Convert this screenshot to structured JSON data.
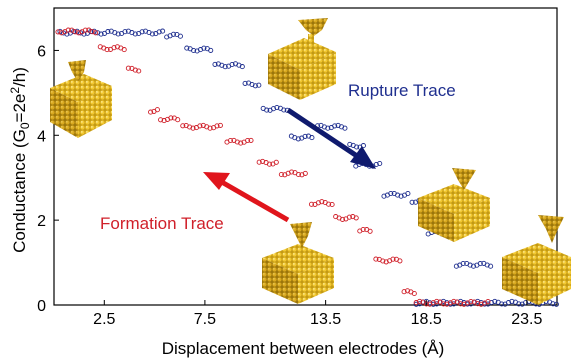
{
  "chart_data": {
    "type": "scatter",
    "xlabel": "Displacement between electrodes (Å)",
    "ylabel_parts": {
      "main": "Conductance (G",
      "sub0": "0",
      "mid": "=2e",
      "sup2": "2",
      "end": "/h)"
    },
    "xlim": [
      0,
      25
    ],
    "ylim": [
      0,
      7
    ],
    "xticks": [
      2.5,
      7.5,
      13.5,
      18.5,
      23.5
    ],
    "xtick_labels": [
      "2.5",
      "7.5",
      "13.5",
      "18.5",
      "23.5"
    ],
    "yticks": [
      0,
      2,
      4,
      6
    ],
    "ytick_labels": [
      "0",
      "2",
      "4",
      "6"
    ],
    "grid": false,
    "series": [
      {
        "name": "Rupture Trace",
        "color": "#1f2f8f",
        "segments": [
          {
            "x": [
              0.3,
              5.4
            ],
            "y": 6.42
          },
          {
            "x": [
              5.6,
              6.3
            ],
            "y": 6.35
          },
          {
            "x": [
              6.6,
              7.9
            ],
            "y": 6.02
          },
          {
            "x": [
              8.0,
              9.4
            ],
            "y": 5.65
          },
          {
            "x": [
              9.5,
              10.3
            ],
            "y": 5.2
          },
          {
            "x": [
              10.4,
              11.6
            ],
            "y": 4.62
          },
          {
            "x": [
              11.8,
              12.9
            ],
            "y": 3.95
          },
          {
            "x": [
              13.1,
              14.6
            ],
            "y": 4.2
          },
          {
            "x": [
              14.7,
              15.4
            ],
            "y": 3.75
          },
          {
            "x": [
              15.0,
              16.2
            ],
            "y": 3.3
          },
          {
            "x": [
              16.4,
              17.7
            ],
            "y": 2.6
          },
          {
            "x": [
              17.8,
              18.4
            ],
            "y": 2.45
          },
          {
            "x": [
              18.6,
              19.9
            ],
            "y": 1.7
          },
          {
            "x": [
              20.0,
              21.8
            ],
            "y": 0.95
          },
          {
            "x": [
              18.0,
              25.0
            ],
            "y": 0.05
          }
        ]
      },
      {
        "name": "Formation Trace",
        "color": "#d0202a",
        "segments": [
          {
            "x": [
              0.2,
              2.2
            ],
            "y": 6.45
          },
          {
            "x": [
              2.3,
              3.6
            ],
            "y": 6.05
          },
          {
            "x": [
              3.7,
              4.3
            ],
            "y": 5.55
          },
          {
            "x": [
              4.8,
              5.2
            ],
            "y": 4.58
          },
          {
            "x": [
              5.3,
              6.2
            ],
            "y": 4.38
          },
          {
            "x": [
              6.4,
              8.4
            ],
            "y": 4.2
          },
          {
            "x": [
              8.6,
              9.9
            ],
            "y": 3.85
          },
          {
            "x": [
              10.2,
              11.2
            ],
            "y": 3.35
          },
          {
            "x": [
              11.3,
              12.6
            ],
            "y": 3.1
          },
          {
            "x": [
              12.8,
              13.9
            ],
            "y": 2.4
          },
          {
            "x": [
              14.0,
              15.1
            ],
            "y": 2.05
          },
          {
            "x": [
              15.2,
              15.8
            ],
            "y": 1.75
          },
          {
            "x": [
              16.0,
              17.3
            ],
            "y": 1.05
          },
          {
            "x": [
              17.4,
              18.0
            ],
            "y": 0.3
          },
          {
            "x": [
              18.0,
              21.6
            ],
            "y": 0.05
          }
        ]
      }
    ],
    "annotations": [
      {
        "text": "Rupture Trace",
        "color": "#1f2f8f"
      },
      {
        "text": "Formation Trace",
        "color": "#d0202a"
      }
    ]
  },
  "illustrations": [
    {
      "name": "gold-electrode-initial-icon"
    },
    {
      "name": "gold-electrode-rupture-icon"
    },
    {
      "name": "gold-electrode-formation-icon"
    },
    {
      "name": "gold-electrode-broken-icon"
    },
    {
      "name": "gold-electrode-right-icon"
    }
  ]
}
